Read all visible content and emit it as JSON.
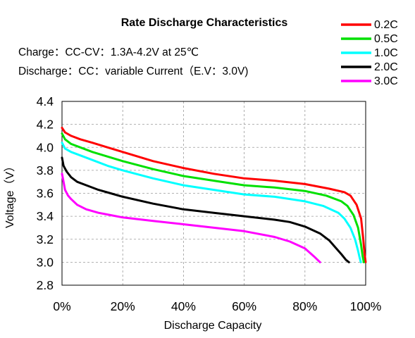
{
  "chart_data": {
    "type": "line",
    "title": "Rate Discharge Characteristics",
    "notes": [
      "Charge：CC-CV：1.3A-4.2V at 25℃",
      "Discharge：CC：variable Current（E.V：3.0V)"
    ],
    "xlabel": "Discharge Capacity",
    "ylabel": "Voltage（V）",
    "xlim": [
      0,
      100
    ],
    "ylim": [
      2.8,
      4.4
    ],
    "x_ticks": [
      "0%",
      "20%",
      "40%",
      "60%",
      "80%",
      "100%"
    ],
    "y_ticks": [
      "2.8",
      "3.0",
      "3.2",
      "3.4",
      "3.6",
      "3.8",
      "4.0",
      "4.2",
      "4.4"
    ],
    "grid": "dashed",
    "legend_position": "top-right",
    "series": [
      {
        "name": "0.2C",
        "color": "#ff0000",
        "x": [
          0,
          1,
          3,
          6,
          10,
          15,
          20,
          30,
          40,
          50,
          60,
          70,
          80,
          88,
          93,
          95,
          97,
          98.5,
          99.2,
          99.6,
          100
        ],
        "y": [
          4.17,
          4.13,
          4.1,
          4.07,
          4.04,
          4.0,
          3.96,
          3.88,
          3.82,
          3.77,
          3.73,
          3.71,
          3.68,
          3.64,
          3.61,
          3.58,
          3.5,
          3.38,
          3.2,
          3.08,
          3.0
        ]
      },
      {
        "name": "0.5C",
        "color": "#00e000",
        "x": [
          0,
          1,
          3,
          6,
          10,
          15,
          20,
          30,
          40,
          50,
          60,
          70,
          80,
          87,
          92,
          94,
          96,
          97.5,
          98.5,
          99.0,
          99.4
        ],
        "y": [
          4.12,
          4.07,
          4.03,
          4.0,
          3.96,
          3.92,
          3.88,
          3.81,
          3.75,
          3.71,
          3.67,
          3.65,
          3.62,
          3.58,
          3.53,
          3.49,
          3.41,
          3.3,
          3.15,
          3.05,
          3.0
        ]
      },
      {
        "name": "1.0C",
        "color": "#00ffff",
        "x": [
          0,
          1,
          3,
          6,
          10,
          15,
          20,
          30,
          40,
          50,
          60,
          70,
          80,
          86,
          91,
          93,
          95,
          96.5,
          97.5,
          98.0,
          98.4
        ],
        "y": [
          4.04,
          3.99,
          3.96,
          3.93,
          3.89,
          3.84,
          3.8,
          3.73,
          3.67,
          3.63,
          3.59,
          3.57,
          3.53,
          3.49,
          3.43,
          3.38,
          3.3,
          3.2,
          3.1,
          3.04,
          3.0
        ]
      },
      {
        "name": "2.0C",
        "color": "#000000",
        "x": [
          0,
          0.5,
          1.5,
          3,
          5,
          8,
          12,
          16,
          20,
          30,
          40,
          50,
          60,
          70,
          75,
          80,
          85,
          88,
          90,
          92,
          93.5,
          94.5
        ],
        "y": [
          3.91,
          3.84,
          3.79,
          3.74,
          3.7,
          3.67,
          3.63,
          3.6,
          3.57,
          3.51,
          3.46,
          3.43,
          3.4,
          3.37,
          3.35,
          3.31,
          3.25,
          3.19,
          3.13,
          3.07,
          3.02,
          3.0
        ]
      },
      {
        "name": "3.0C",
        "color": "#ff00ff",
        "x": [
          0,
          0.5,
          1,
          2,
          3,
          5,
          8,
          12,
          16,
          20,
          30,
          40,
          50,
          60,
          70,
          75,
          80,
          83,
          85
        ],
        "y": [
          3.77,
          3.7,
          3.63,
          3.58,
          3.55,
          3.5,
          3.46,
          3.43,
          3.41,
          3.39,
          3.36,
          3.33,
          3.3,
          3.27,
          3.22,
          3.18,
          3.12,
          3.05,
          3.0
        ]
      }
    ]
  }
}
